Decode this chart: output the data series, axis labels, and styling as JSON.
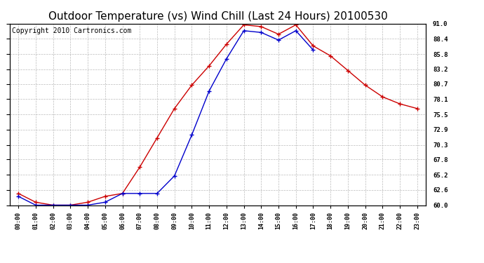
{
  "title": "Outdoor Temperature (vs) Wind Chill (Last 24 Hours) 20100530",
  "copyright_text": "Copyright 2010 Cartronics.com",
  "x_labels": [
    "00:00",
    "01:00",
    "02:00",
    "03:00",
    "04:00",
    "05:00",
    "06:00",
    "07:00",
    "08:00",
    "09:00",
    "10:00",
    "11:00",
    "12:00",
    "13:00",
    "14:00",
    "15:00",
    "16:00",
    "17:00",
    "18:00",
    "19:00",
    "20:00",
    "21:00",
    "22:00",
    "23:00"
  ],
  "temp_red": [
    62.0,
    60.5,
    60.0,
    60.0,
    60.5,
    61.5,
    62.0,
    66.5,
    71.5,
    76.5,
    80.5,
    83.8,
    87.5,
    90.8,
    90.5,
    89.2,
    90.8,
    87.2,
    85.5,
    83.0,
    80.5,
    78.5,
    77.3,
    76.5
  ],
  "wind_chill_blue": [
    61.5,
    60.0,
    60.0,
    60.0,
    60.0,
    60.5,
    62.0,
    62.0,
    62.0,
    65.0,
    72.0,
    79.5,
    85.0,
    89.8,
    89.5,
    88.2,
    89.8,
    86.5,
    null,
    null,
    null,
    null,
    null,
    null
  ],
  "ylim_min": 60.0,
  "ylim_max": 91.0,
  "yticks": [
    60.0,
    62.6,
    65.2,
    67.8,
    70.3,
    72.9,
    75.5,
    78.1,
    80.7,
    83.2,
    85.8,
    88.4,
    91.0
  ],
  "red_color": "#cc0000",
  "blue_color": "#0000cc",
  "grid_color": "#bbbbbb",
  "background_color": "#ffffff",
  "title_fontsize": 11,
  "annotation_fontsize": 7,
  "figwidth": 6.9,
  "figheight": 3.75,
  "dpi": 100
}
